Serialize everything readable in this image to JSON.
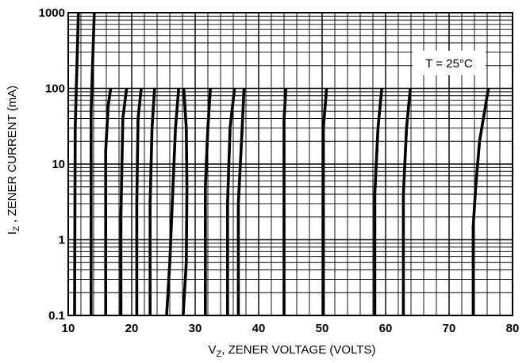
{
  "chart_data": {
    "type": "line",
    "title": "",
    "annotation": "T = 25°C",
    "xlabel": {
      "prefix": "V",
      "sub": "Z",
      "suffix": ", ZENER VOLTAGE (VOLTS)"
    },
    "ylabel": {
      "prefix": "I",
      "sub": "Z",
      "suffix": " , ZENER CURRENT (mA)"
    },
    "xlim": [
      10,
      80
    ],
    "ylim": [
      0.1,
      1000
    ],
    "yscale": "log",
    "grid": true,
    "x_ticks": [
      "10",
      "20",
      "30",
      "40",
      "50",
      "60",
      "70",
      "80"
    ],
    "y_ticks": [
      "0.1",
      "1",
      "10",
      "100",
      "1000"
    ],
    "series": [
      {
        "points": [
          [
            11.0,
            0.1
          ],
          [
            11.1,
            30
          ],
          [
            11.6,
            1000
          ]
        ]
      },
      {
        "points": [
          [
            13.6,
            0.1
          ],
          [
            13.6,
            50
          ],
          [
            14.1,
            1000
          ]
        ]
      },
      {
        "points": [
          [
            15.9,
            0.1
          ],
          [
            15.9,
            15
          ],
          [
            16.3,
            60
          ],
          [
            16.7,
            100
          ]
        ]
      },
      {
        "points": [
          [
            18.3,
            0.1
          ],
          [
            18.3,
            2
          ],
          [
            18.6,
            40
          ],
          [
            19.2,
            100
          ]
        ]
      },
      {
        "points": [
          [
            20.8,
            0.1
          ],
          [
            20.8,
            3
          ],
          [
            21.0,
            40
          ],
          [
            21.5,
            100
          ]
        ]
      },
      {
        "points": [
          [
            22.9,
            0.1
          ],
          [
            22.9,
            3
          ],
          [
            23.2,
            30
          ],
          [
            23.6,
            100
          ]
        ]
      },
      {
        "points": [
          [
            25.5,
            0.1
          ],
          [
            26.0,
            0.5
          ],
          [
            26.5,
            5
          ],
          [
            26.9,
            30
          ],
          [
            27.4,
            100
          ]
        ]
      },
      {
        "points": [
          [
            28.1,
            0.1
          ],
          [
            28.6,
            0.5
          ],
          [
            28.7,
            5
          ],
          [
            28.6,
            30
          ],
          [
            28.2,
            100
          ]
        ]
      },
      {
        "points": [
          [
            31.6,
            0.1
          ],
          [
            31.6,
            5
          ],
          [
            32.0,
            30
          ],
          [
            32.4,
            100
          ]
        ]
      },
      {
        "points": [
          [
            35.1,
            0.1
          ],
          [
            35.1,
            3
          ],
          [
            35.5,
            30
          ],
          [
            36.2,
            100
          ]
        ]
      },
      {
        "points": [
          [
            36.8,
            0.1
          ],
          [
            36.8,
            3
          ],
          [
            37.3,
            20
          ],
          [
            37.7,
            100
          ]
        ]
      },
      {
        "points": [
          [
            44.0,
            0.1
          ],
          [
            44.0,
            40
          ],
          [
            44.3,
            100
          ]
        ]
      },
      {
        "points": [
          [
            50.2,
            0.1
          ],
          [
            50.2,
            30
          ],
          [
            50.7,
            100
          ]
        ]
      },
      {
        "points": [
          [
            58.3,
            0.1
          ],
          [
            58.3,
            4
          ],
          [
            58.8,
            30
          ],
          [
            59.4,
            100
          ]
        ]
      },
      {
        "points": [
          [
            62.8,
            0.1
          ],
          [
            62.8,
            4
          ],
          [
            63.3,
            30
          ],
          [
            63.9,
            100
          ]
        ]
      },
      {
        "points": [
          [
            73.8,
            0.1
          ],
          [
            73.8,
            1.5
          ],
          [
            74.2,
            5
          ],
          [
            74.8,
            20
          ],
          [
            76.2,
            100
          ]
        ]
      }
    ]
  }
}
